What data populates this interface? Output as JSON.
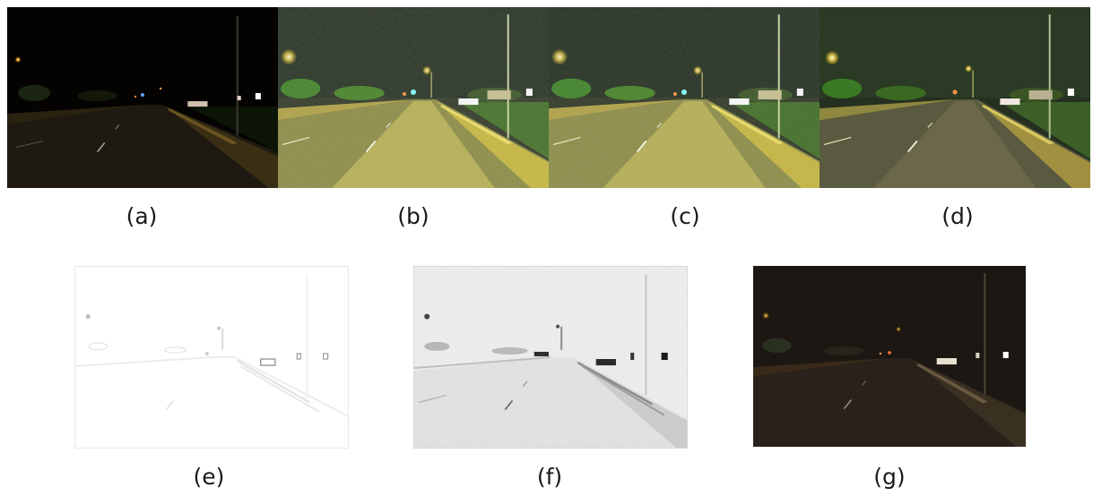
{
  "figure": {
    "top_row": [
      {
        "id": "a",
        "caption": "(a)",
        "variant": "original-dark"
      },
      {
        "id": "b",
        "caption": "(b)",
        "variant": "enhanced-noisy"
      },
      {
        "id": "c",
        "caption": "(c)",
        "variant": "enhanced-noisy"
      },
      {
        "id": "d",
        "caption": "(d)",
        "variant": "enhanced-smooth"
      }
    ],
    "bottom_row": [
      {
        "id": "e",
        "caption": "(e)",
        "variant": "map-faint"
      },
      {
        "id": "f",
        "caption": "(f)",
        "variant": "map-grey"
      },
      {
        "id": "g",
        "caption": "(g)",
        "variant": "reconstructed-dim"
      }
    ]
  }
}
